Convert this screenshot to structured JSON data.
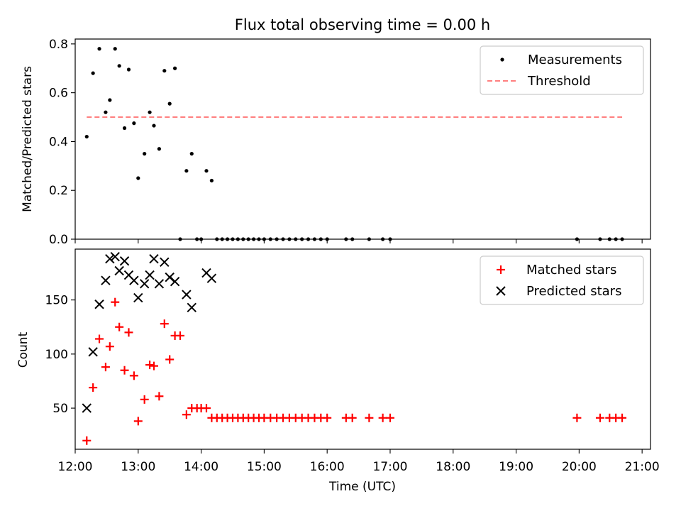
{
  "figure": {
    "title": "Flux total observing time = 0.00 h"
  },
  "chart_data": [
    {
      "type": "scatter",
      "ylabel": "Matched/Predicted stars",
      "ylim": [
        0,
        0.82
      ],
      "yticks": [
        0.0,
        0.2,
        0.4,
        0.6,
        0.8
      ],
      "yticklabels": [
        "0.0",
        "0.2",
        "0.4",
        "0.6",
        "0.8"
      ],
      "xlim": [
        "12:00",
        "21:08"
      ],
      "legend": {
        "placement": "upper-right",
        "entries": [
          "Measurements",
          "Threshold"
        ]
      },
      "series": [
        {
          "name": "Measurements",
          "marker": "dot",
          "color": "#000000",
          "points": [
            [
              "12:11",
              0.42
            ],
            [
              "12:17",
              0.68
            ],
            [
              "12:23",
              0.78
            ],
            [
              "12:29",
              0.52
            ],
            [
              "12:33",
              0.57
            ],
            [
              "12:38",
              0.78
            ],
            [
              "12:42",
              0.71
            ],
            [
              "12:47",
              0.455
            ],
            [
              "12:51",
              0.695
            ],
            [
              "12:56",
              0.475
            ],
            [
              "13:00",
              0.25
            ],
            [
              "13:06",
              0.35
            ],
            [
              "13:11",
              0.52
            ],
            [
              "13:15",
              0.465
            ],
            [
              "13:20",
              0.37
            ],
            [
              "13:25",
              0.69
            ],
            [
              "13:30",
              0.555
            ],
            [
              "13:35",
              0.7
            ],
            [
              "13:40",
              0.0
            ],
            [
              "13:46",
              0.28
            ],
            [
              "13:51",
              0.35
            ],
            [
              "13:56",
              0.0
            ],
            [
              "14:00",
              0.0
            ],
            [
              "14:05",
              0.28
            ],
            [
              "14:10",
              0.24
            ],
            [
              "14:15",
              0.0
            ],
            [
              "14:20",
              0.0
            ],
            [
              "14:25",
              0.0
            ],
            [
              "14:30",
              0.0
            ],
            [
              "14:35",
              0.0
            ],
            [
              "14:40",
              0.0
            ],
            [
              "14:45",
              0.0
            ],
            [
              "14:50",
              0.0
            ],
            [
              "14:55",
              0.0
            ],
            [
              "15:00",
              0.0
            ],
            [
              "15:06",
              0.0
            ],
            [
              "15:12",
              0.0
            ],
            [
              "15:18",
              0.0
            ],
            [
              "15:24",
              0.0
            ],
            [
              "15:30",
              0.0
            ],
            [
              "15:36",
              0.0
            ],
            [
              "15:42",
              0.0
            ],
            [
              "15:48",
              0.0
            ],
            [
              "15:54",
              0.0
            ],
            [
              "16:00",
              0.0
            ],
            [
              "16:18",
              0.0
            ],
            [
              "16:24",
              0.0
            ],
            [
              "16:40",
              0.0
            ],
            [
              "16:53",
              0.0
            ],
            [
              "17:00",
              0.0
            ],
            [
              "19:58",
              0.0
            ],
            [
              "20:20",
              0.0
            ],
            [
              "20:29",
              0.0
            ],
            [
              "20:35",
              0.0
            ],
            [
              "20:41",
              0.0
            ]
          ]
        },
        {
          "name": "Threshold",
          "style": "dashed-line",
          "color": "#ff7f7f",
          "points": [
            [
              "12:11",
              0.5
            ],
            [
              "20:41",
              0.5
            ]
          ]
        }
      ]
    },
    {
      "type": "scatter",
      "xlabel": "Time (UTC)",
      "ylabel": "Count",
      "ylim": [
        12,
        197
      ],
      "yticks": [
        50,
        100,
        150
      ],
      "yticklabels": [
        "50",
        "100",
        "150"
      ],
      "xlim": [
        "12:00",
        "21:08"
      ],
      "xticklabels": [
        "12:00",
        "13:00",
        "14:00",
        "15:00",
        "16:00",
        "17:00",
        "18:00",
        "19:00",
        "20:00",
        "21:00"
      ],
      "legend": {
        "placement": "upper-right",
        "entries": [
          "Matched stars",
          "Predicted stars"
        ]
      },
      "series": [
        {
          "name": "Matched stars",
          "marker": "plus",
          "color": "#ff0000",
          "points": [
            [
              "12:11",
              20
            ],
            [
              "12:17",
              69
            ],
            [
              "12:23",
              114
            ],
            [
              "12:29",
              88
            ],
            [
              "12:33",
              107
            ],
            [
              "12:38",
              148
            ],
            [
              "12:42",
              125
            ],
            [
              "12:47",
              85
            ],
            [
              "12:51",
              120
            ],
            [
              "12:56",
              80
            ],
            [
              "13:00",
              38
            ],
            [
              "13:06",
              58
            ],
            [
              "13:11",
              90
            ],
            [
              "13:15",
              89
            ],
            [
              "13:20",
              61
            ],
            [
              "13:25",
              128
            ],
            [
              "13:30",
              95
            ],
            [
              "13:35",
              117
            ],
            [
              "13:40",
              117
            ],
            [
              "13:46",
              44
            ],
            [
              "13:51",
              50
            ],
            [
              "13:56",
              50
            ],
            [
              "14:00",
              50
            ],
            [
              "14:05",
              50
            ],
            [
              "14:10",
              41
            ],
            [
              "14:15",
              41
            ],
            [
              "14:20",
              41
            ],
            [
              "14:25",
              41
            ],
            [
              "14:30",
              41
            ],
            [
              "14:35",
              41
            ],
            [
              "14:40",
              41
            ],
            [
              "14:45",
              41
            ],
            [
              "14:50",
              41
            ],
            [
              "14:55",
              41
            ],
            [
              "15:00",
              41
            ],
            [
              "15:06",
              41
            ],
            [
              "15:12",
              41
            ],
            [
              "15:18",
              41
            ],
            [
              "15:24",
              41
            ],
            [
              "15:30",
              41
            ],
            [
              "15:36",
              41
            ],
            [
              "15:42",
              41
            ],
            [
              "15:48",
              41
            ],
            [
              "15:54",
              41
            ],
            [
              "16:00",
              41
            ],
            [
              "16:18",
              41
            ],
            [
              "16:24",
              41
            ],
            [
              "16:40",
              41
            ],
            [
              "16:53",
              41
            ],
            [
              "17:00",
              41
            ],
            [
              "19:58",
              41
            ],
            [
              "20:20",
              41
            ],
            [
              "20:29",
              41
            ],
            [
              "20:35",
              41
            ],
            [
              "20:41",
              41
            ]
          ]
        },
        {
          "name": "Predicted stars",
          "marker": "x",
          "color": "#000000",
          "points": [
            [
              "12:11",
              50
            ],
            [
              "12:17",
              102
            ],
            [
              "12:23",
              146
            ],
            [
              "12:29",
              168
            ],
            [
              "12:33",
              188
            ],
            [
              "12:38",
              190
            ],
            [
              "12:42",
              177
            ],
            [
              "12:47",
              186
            ],
            [
              "12:51",
              173
            ],
            [
              "12:56",
              168
            ],
            [
              "13:00",
              152
            ],
            [
              "13:06",
              165
            ],
            [
              "13:11",
              173
            ],
            [
              "13:15",
              188
            ],
            [
              "13:20",
              165
            ],
            [
              "13:25",
              185
            ],
            [
              "13:30",
              171
            ],
            [
              "13:35",
              167
            ],
            [
              "13:46",
              155
            ],
            [
              "13:51",
              143
            ],
            [
              "14:05",
              175
            ],
            [
              "14:10",
              170
            ]
          ]
        }
      ]
    }
  ]
}
